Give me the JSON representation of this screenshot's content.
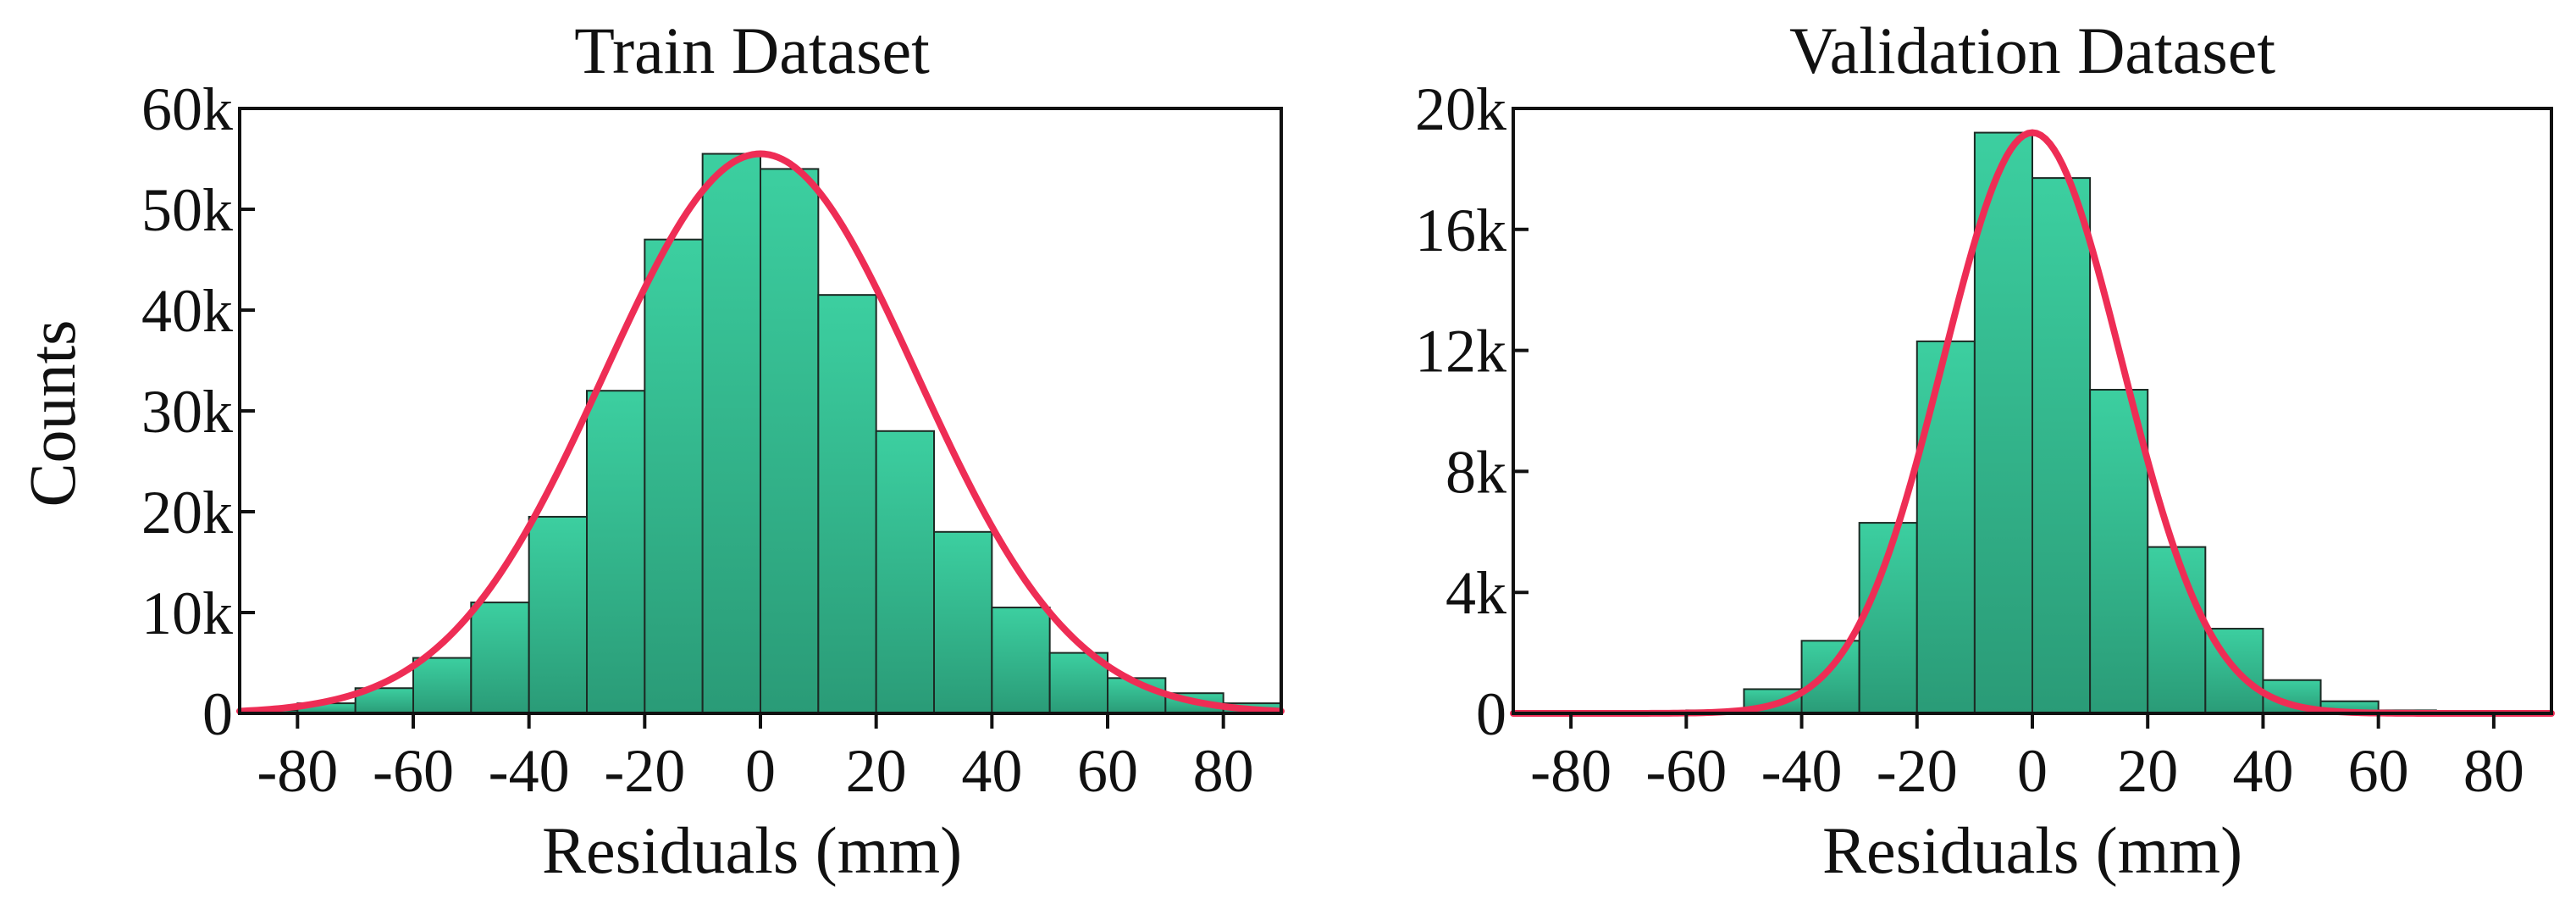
{
  "figure": {
    "ylabel": "Counts",
    "colors": {
      "bar_fill_top": "#3ccfa0",
      "bar_fill_bottom": "#2a9b77",
      "bar_stroke": "#1c2a24",
      "curve": "#ee2d55",
      "axis": "#111111"
    }
  },
  "chart_data": [
    {
      "type": "bar",
      "title": "Train Dataset",
      "xlabel": "Residuals (mm)",
      "ylabel": "Counts",
      "xlim": [
        -90,
        90
      ],
      "ylim": [
        0,
        60000
      ],
      "bin_width": 10,
      "bins_left_edges": [
        -90,
        -80,
        -70,
        -60,
        -50,
        -40,
        -30,
        -20,
        -10,
        0,
        10,
        20,
        30,
        40,
        50,
        60,
        70,
        80
      ],
      "values": [
        300,
        1000,
        2500,
        5500,
        11000,
        19500,
        32000,
        47000,
        55500,
        54000,
        41500,
        28000,
        18000,
        10500,
        6000,
        3500,
        2000,
        1000
      ],
      "fit_curve": {
        "type": "gaussian",
        "mean": 0,
        "std": 27,
        "peak": 55500
      },
      "x_ticks": [
        -80,
        -60,
        -40,
        -20,
        0,
        20,
        40,
        60,
        80
      ],
      "x_tick_labels": [
        "-80",
        "-60",
        "-40",
        "-20",
        "0",
        "20",
        "40",
        "60",
        "80"
      ],
      "y_ticks": [
        0,
        10000,
        20000,
        30000,
        40000,
        50000,
        60000
      ],
      "y_tick_labels": [
        "0",
        "10k",
        "20k",
        "30k",
        "40k",
        "50k",
        "60k"
      ]
    },
    {
      "type": "bar",
      "title": "Validation  Dataset",
      "xlabel": "Residuals (mm)",
      "ylabel": "",
      "xlim": [
        -90,
        90
      ],
      "ylim": [
        0,
        20000
      ],
      "bin_width": 10,
      "bins_left_edges": [
        -60,
        -50,
        -40,
        -30,
        -20,
        -10,
        0,
        10,
        20,
        30,
        40,
        50,
        60
      ],
      "values": [
        100,
        800,
        2400,
        6300,
        12300,
        19200,
        17700,
        10700,
        5500,
        2800,
        1100,
        400,
        100
      ],
      "fit_curve": {
        "type": "gaussian",
        "mean": 0,
        "std": 15.5,
        "peak": 19200
      },
      "x_ticks": [
        -80,
        -60,
        -40,
        -20,
        0,
        20,
        40,
        60,
        80
      ],
      "x_tick_labels": [
        "-80",
        "-60",
        "-40",
        "-20",
        "0",
        "20",
        "40",
        "60",
        "80"
      ],
      "y_ticks": [
        0,
        4000,
        8000,
        12000,
        16000,
        20000
      ],
      "y_tick_labels": [
        "0",
        "4k",
        "8k",
        "12k",
        "16k",
        "20k"
      ]
    }
  ]
}
